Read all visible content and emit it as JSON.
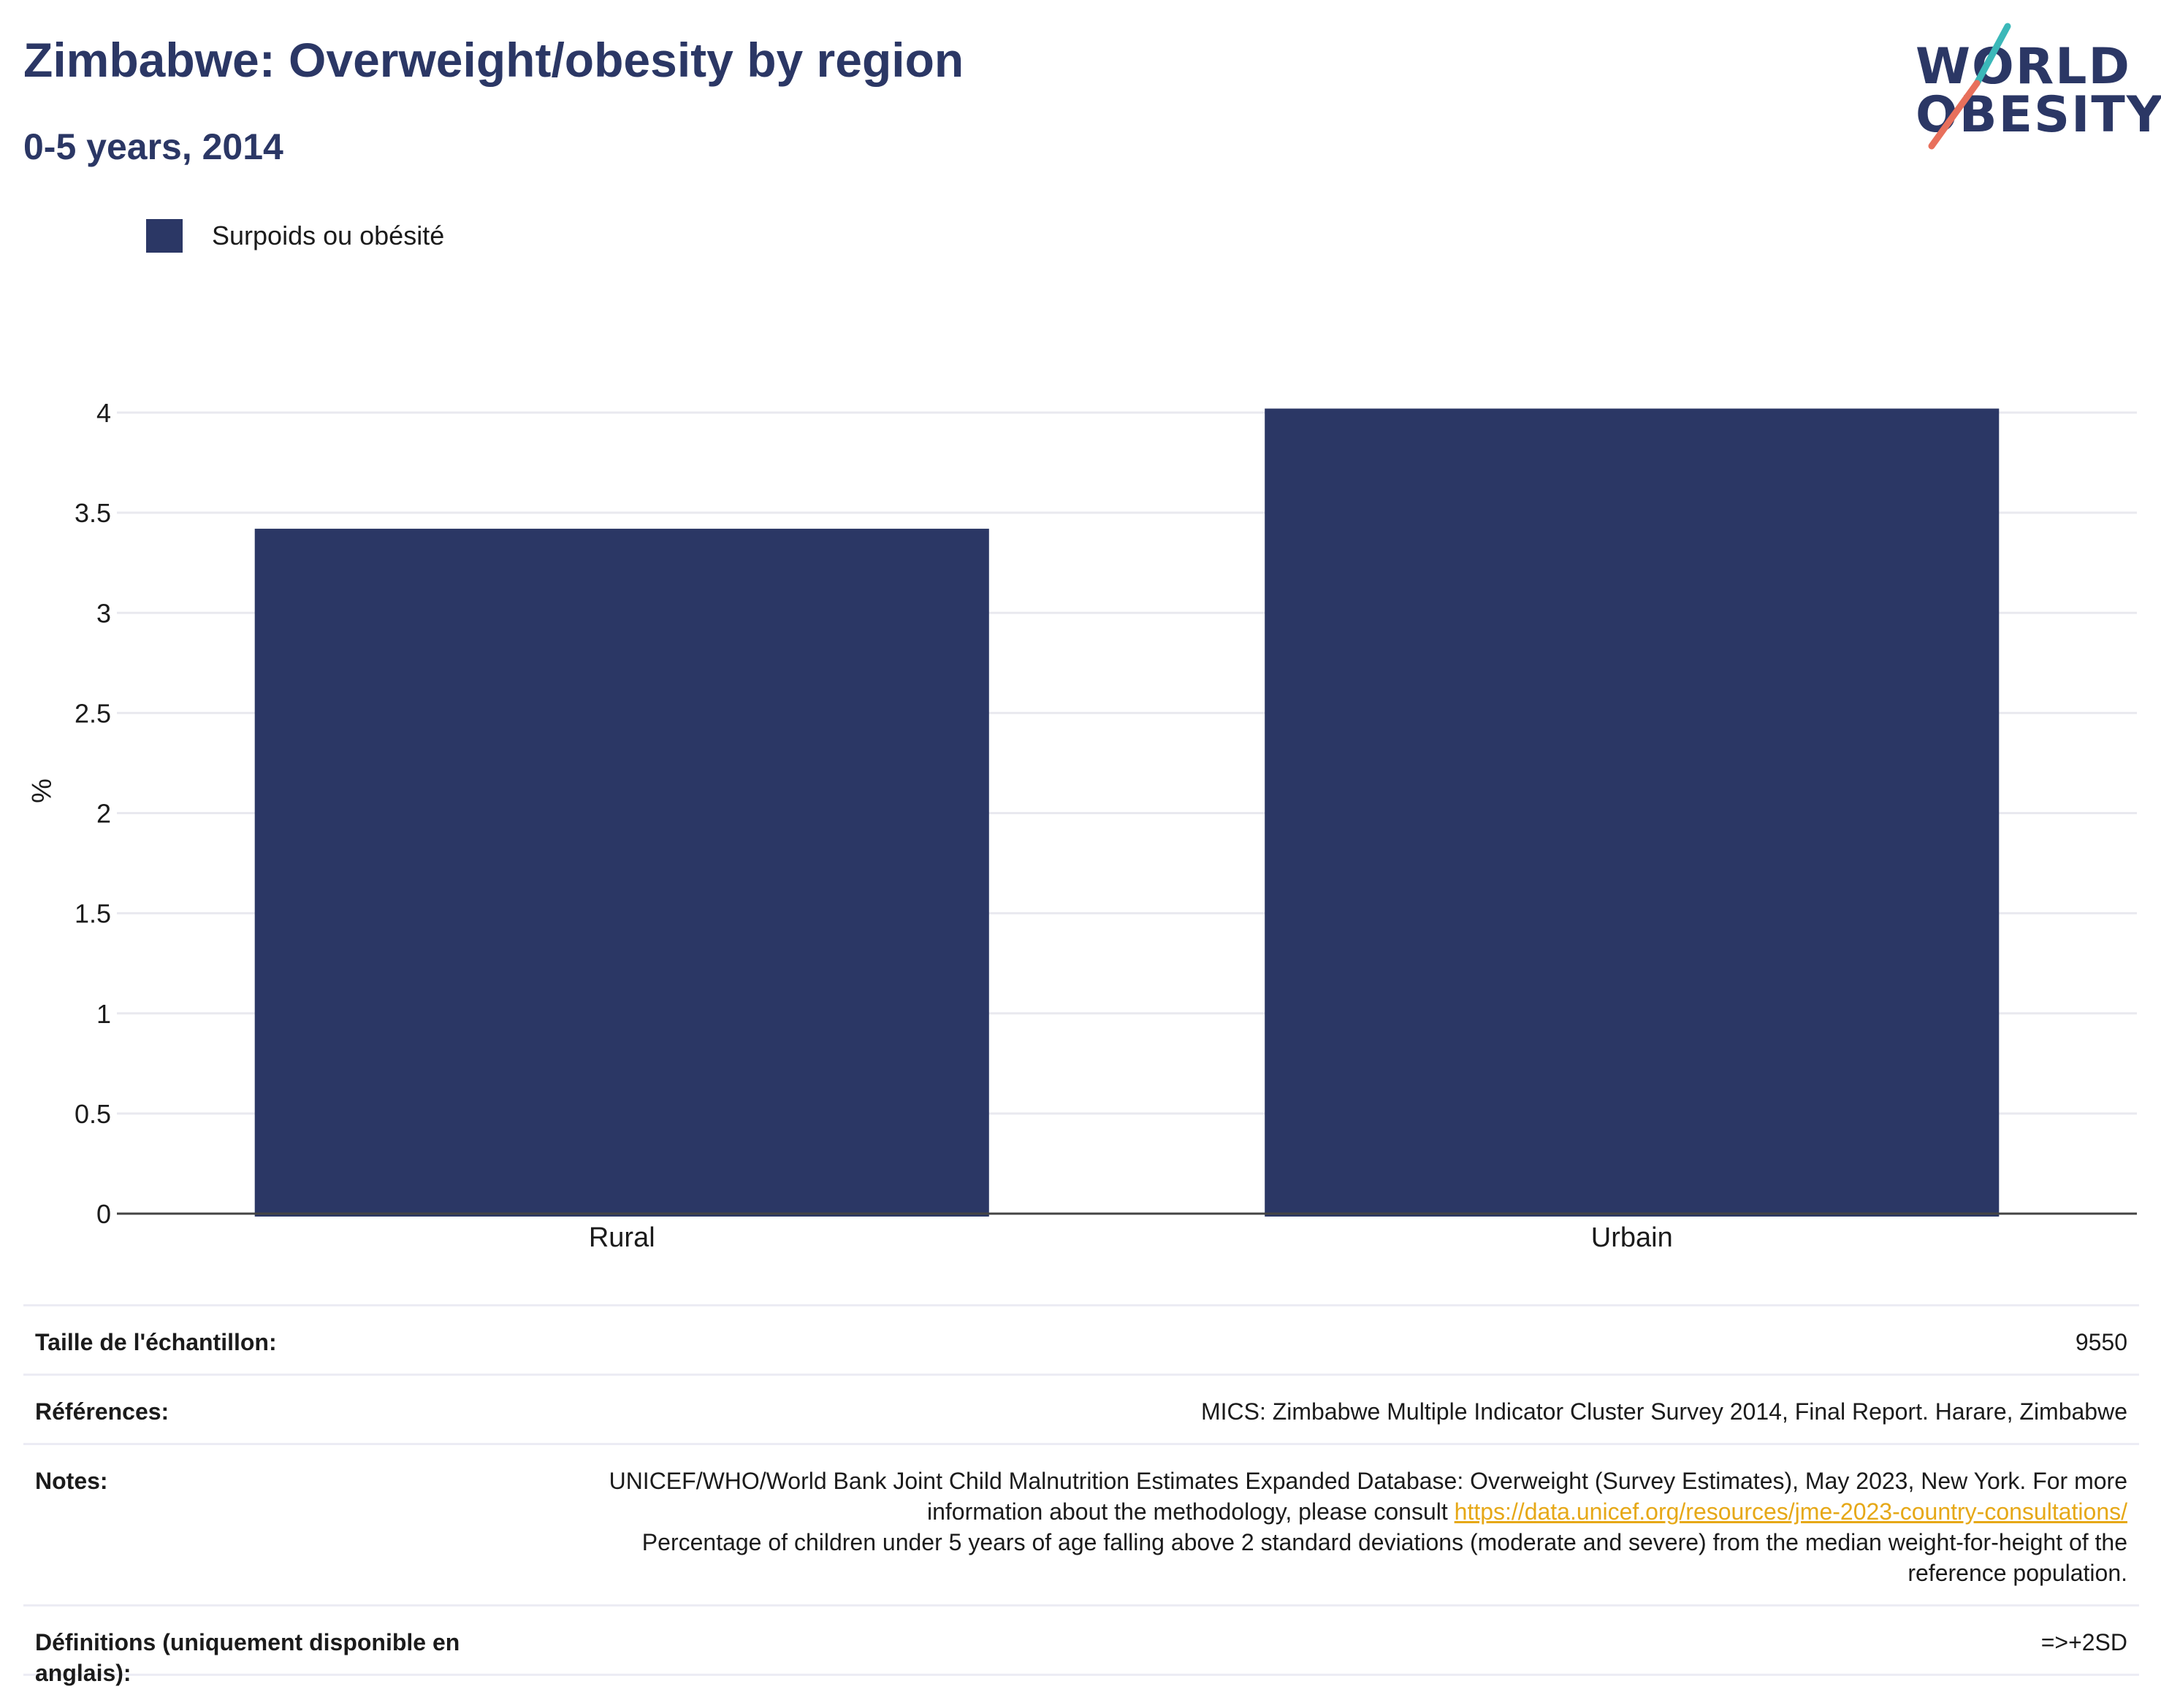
{
  "header": {
    "title": "Zimbabwe: Overweight/obesity by region",
    "subtitle": "0-5 years, 2014"
  },
  "logo": {
    "line1": "WORLD",
    "line2": "OBESITY",
    "icon": "slash-mark-icon",
    "colors": {
      "text": "#2b3765",
      "teal": "#3bb8b9",
      "coral": "#e8705c"
    }
  },
  "legend": {
    "label": "Surpoids ou obésité",
    "color": "#2b3765"
  },
  "chart_data": {
    "type": "bar",
    "categories": [
      "Rural",
      "Urbain"
    ],
    "series": [
      {
        "name": "Surpoids ou obésité",
        "values": [
          3.42,
          4.02
        ],
        "color": "#2b3765"
      }
    ],
    "ylabel": "%",
    "xlabel": "",
    "ylim": [
      0,
      4
    ],
    "yticks": [
      0,
      0.5,
      1,
      1.5,
      2,
      2.5,
      3,
      3.5,
      4
    ],
    "ytick_labels": [
      "0",
      "0.5",
      "1",
      "1.5",
      "2",
      "2.5",
      "3",
      "3.5",
      "4"
    ],
    "grid": true,
    "legend_position": "top-left"
  },
  "info": {
    "sample_label": "Taille de l'échantillon:",
    "sample_value": "9550",
    "references_label": "Références:",
    "references_value": "MICS: Zimbabwe Multiple Indicator Cluster Survey 2014, Final Report. Harare, Zimbabwe",
    "notes_label": "Notes:",
    "notes_text_1": "UNICEF/WHO/World Bank Joint Child Malnutrition Estimates Expanded Database: Overweight (Survey Estimates), May 2023, New York. For more information about the methodology, please consult",
    "notes_link": "https://data.unicef.org/resources/jme-2023-country-consultations/",
    "notes_text_2": "Percentage of children under 5 years of age falling above 2 standard deviations (moderate and severe) from the median weight-for-height of the reference population.",
    "definitions_label": "Définitions (uniquement disponible en anglais):",
    "definitions_value": "=>+2SD"
  }
}
